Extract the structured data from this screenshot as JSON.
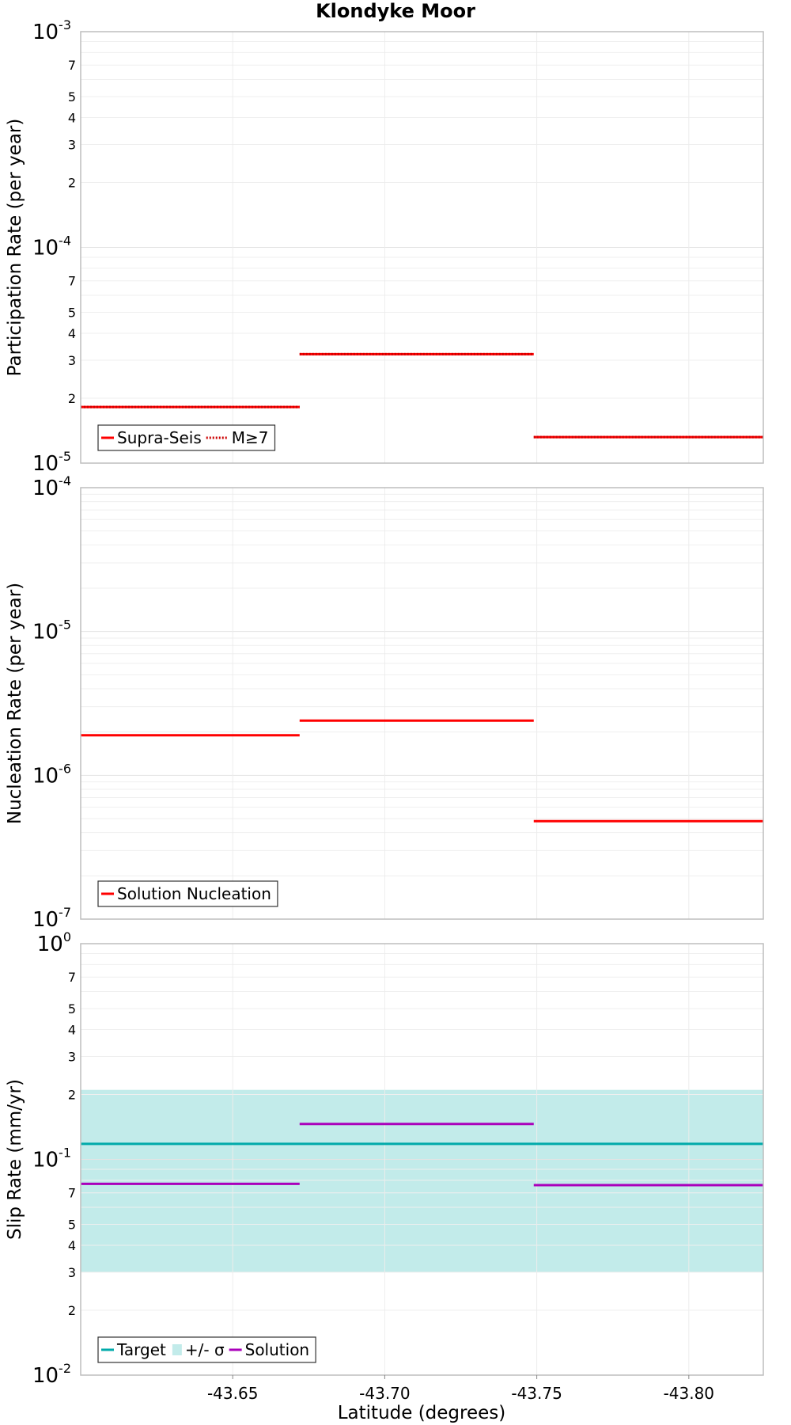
{
  "title": "Klondyke Moor",
  "xlabel": "Latitude (degrees)",
  "x_ticks": [
    -43.65,
    -43.7,
    -43.75,
    -43.8
  ],
  "x_tick_labels": [
    "-43.65",
    "-43.70",
    "-43.75",
    "-43.80"
  ],
  "xlim": [
    -43.6,
    -43.8245
  ],
  "chart_data": [
    {
      "type": "line",
      "ylabel": "Participation Rate (per year)",
      "yscale": "log",
      "ylim": [
        1e-05,
        0.001
      ],
      "decade_labels": [
        {
          "value": 0.001,
          "base": "10",
          "exp": "-3"
        },
        {
          "value": 0.0001,
          "base": "10",
          "exp": "-4"
        },
        {
          "value": 1e-05,
          "base": "10",
          "exp": "-5"
        }
      ],
      "minor_labels": [
        7,
        5,
        4,
        3,
        2
      ],
      "series": [
        {
          "name": "Supra-Seis",
          "color": "#ff0000",
          "style": "solid",
          "segments": [
            {
              "x": [
                -43.6,
                -43.672
              ],
              "y": 1.82e-05
            },
            {
              "x": [
                -43.672,
                -43.749
              ],
              "y": 3.2e-05
            },
            {
              "x": [
                -43.749,
                -43.8245
              ],
              "y": 1.32e-05
            }
          ]
        },
        {
          "name": "M≥7",
          "color": "#ff0000",
          "style": "dotted",
          "segments": [
            {
              "x": [
                -43.6,
                -43.672
              ],
              "y": 1.82e-05
            },
            {
              "x": [
                -43.672,
                -43.749
              ],
              "y": 3.2e-05
            },
            {
              "x": [
                -43.749,
                -43.8245
              ],
              "y": 1.32e-05
            }
          ]
        }
      ],
      "legend": [
        {
          "label": "Supra-Seis",
          "color": "#ff0000",
          "style": "solid"
        },
        {
          "label": "M≥7",
          "color": "#ff0000",
          "style": "dotted"
        }
      ],
      "legend_position": "bottom-left"
    },
    {
      "type": "line",
      "ylabel": "Nucleation Rate (per year)",
      "yscale": "log",
      "ylim": [
        1e-07,
        0.0001
      ],
      "decade_labels": [
        {
          "value": 0.0001,
          "base": "10",
          "exp": "-4"
        },
        {
          "value": 1e-05,
          "base": "10",
          "exp": "-5"
        },
        {
          "value": 1e-06,
          "base": "10",
          "exp": "-6"
        },
        {
          "value": 1e-07,
          "base": "10",
          "exp": "-7"
        }
      ],
      "minor_labels": [],
      "series": [
        {
          "name": "Solution Nucleation",
          "color": "#ff0000",
          "style": "solid",
          "segments": [
            {
              "x": [
                -43.6,
                -43.672
              ],
              "y": 1.9e-06
            },
            {
              "x": [
                -43.672,
                -43.749
              ],
              "y": 2.4e-06
            },
            {
              "x": [
                -43.749,
                -43.8245
              ],
              "y": 4.8e-07
            }
          ]
        }
      ],
      "legend": [
        {
          "label": "Solution Nucleation",
          "color": "#ff0000",
          "style": "solid"
        }
      ],
      "legend_position": "bottom-left"
    },
    {
      "type": "line",
      "ylabel": "Slip Rate (mm/yr)",
      "yscale": "log",
      "ylim": [
        0.01,
        1
      ],
      "decade_labels": [
        {
          "value": 1,
          "base": "10",
          "exp": "0"
        },
        {
          "value": 0.1,
          "base": "10",
          "exp": "-1"
        },
        {
          "value": 0.01,
          "base": "10",
          "exp": "-2"
        }
      ],
      "minor_labels": [
        7,
        5,
        4,
        3,
        2
      ],
      "band": {
        "name": "+/- σ",
        "color": "#c2ebea",
        "x": [
          -43.6,
          -43.8245
        ],
        "y": [
          0.03,
          0.21
        ]
      },
      "series": [
        {
          "name": "Target",
          "color": "#00aaaa",
          "style": "solid",
          "segments": [
            {
              "x": [
                -43.6,
                -43.8245
              ],
              "y": 0.118
            }
          ]
        },
        {
          "name": "Solution",
          "color": "#aa00bb",
          "style": "solid",
          "segments": [
            {
              "x": [
                -43.6,
                -43.672
              ],
              "y": 0.077
            },
            {
              "x": [
                -43.672,
                -43.749
              ],
              "y": 0.146
            },
            {
              "x": [
                -43.749,
                -43.8245
              ],
              "y": 0.076
            }
          ]
        }
      ],
      "legend": [
        {
          "label": "Target",
          "color": "#00aaaa",
          "style": "solid"
        },
        {
          "label": "+/- σ",
          "color": "#c2ebea",
          "style": "box"
        },
        {
          "label": "Solution",
          "color": "#aa00bb",
          "style": "solid"
        }
      ],
      "legend_position": "bottom-left"
    }
  ]
}
